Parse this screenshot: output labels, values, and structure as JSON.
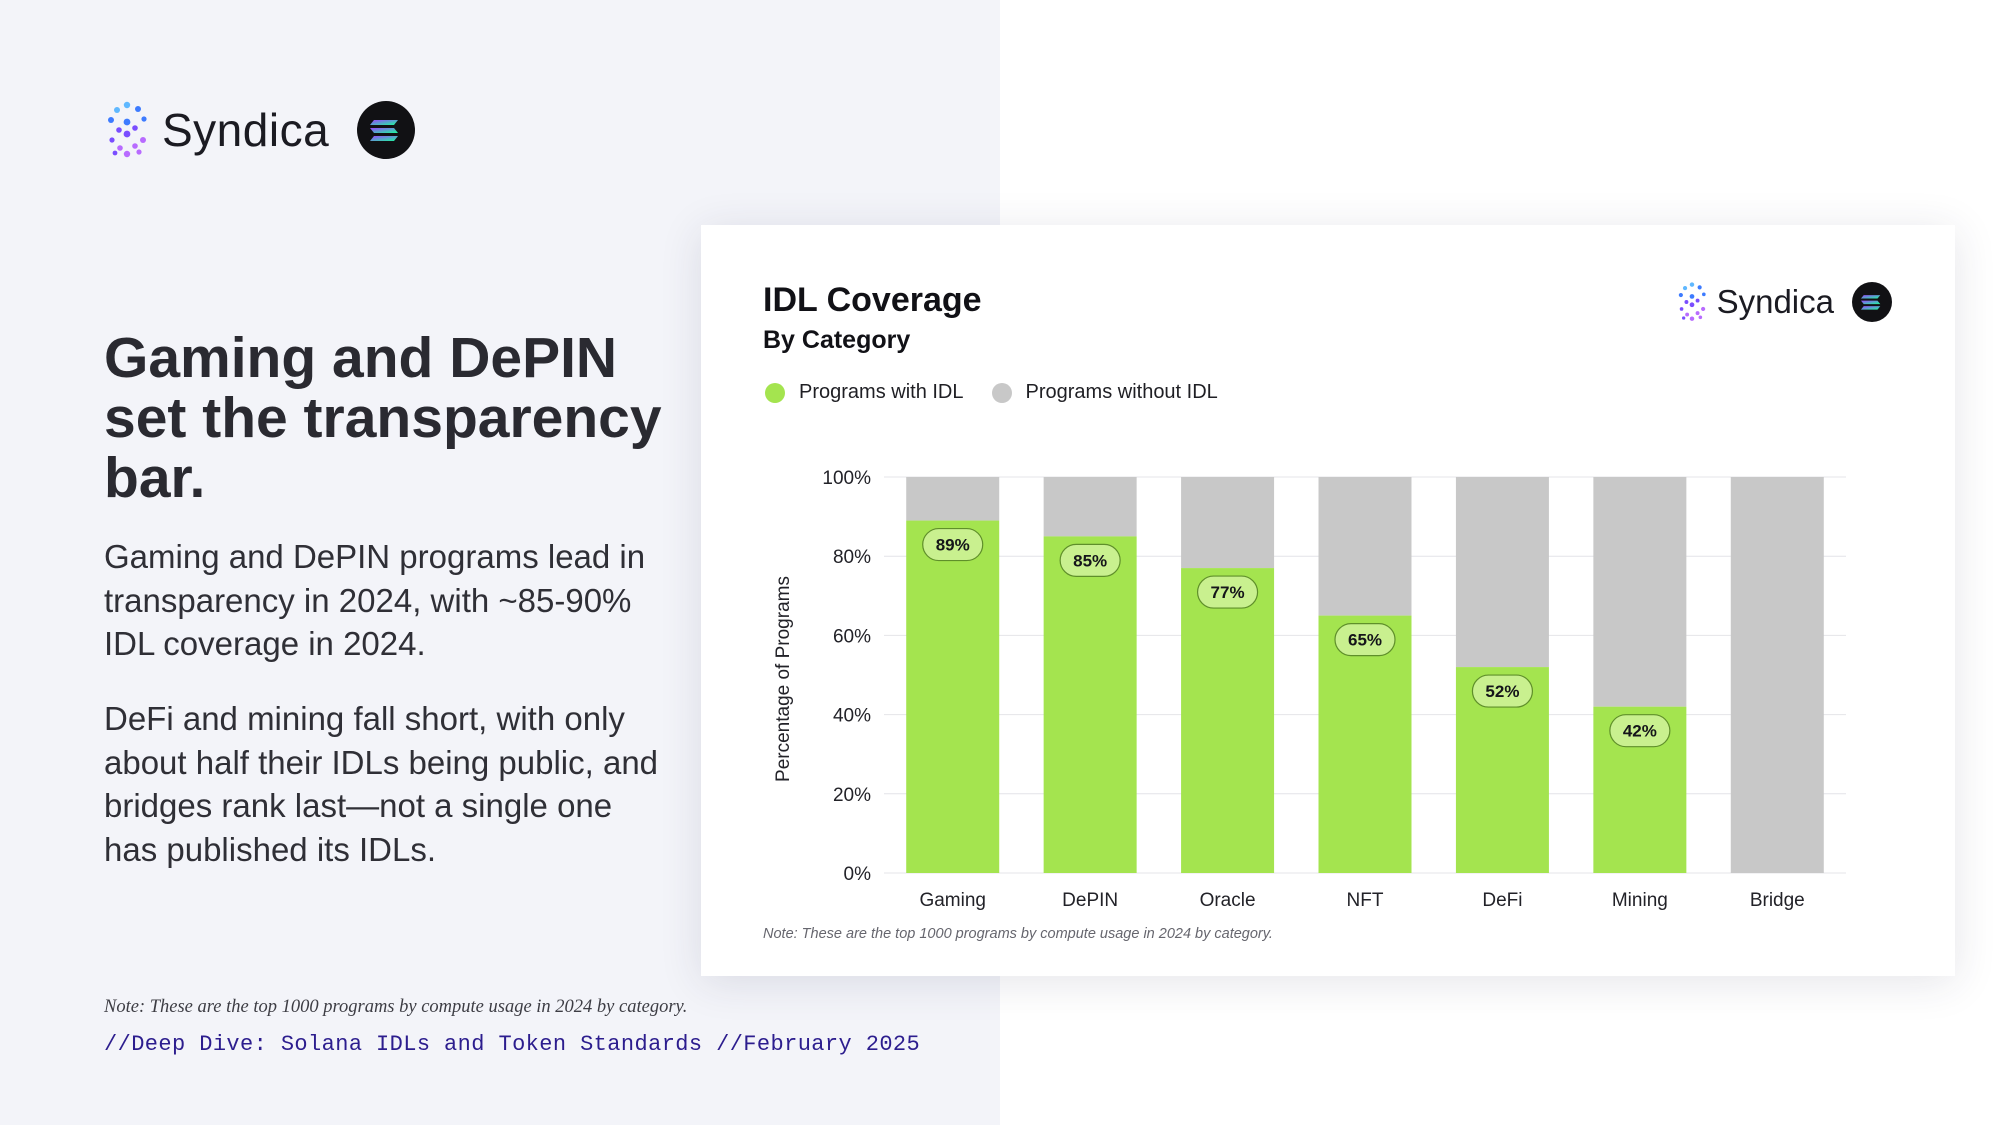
{
  "brand": {
    "name": "Syndica",
    "mark_colors": [
      "#5fb8ff",
      "#3d7bff",
      "#7a4dff",
      "#b86bff"
    ],
    "solana_gradient": [
      "#9945ff",
      "#19fb9b"
    ]
  },
  "left": {
    "headline": "Gaming and DePIN set the transparency bar.",
    "paragraph1": "Gaming and DePIN programs lead in transparency in 2024, with ~85-90% IDL coverage in 2024.",
    "paragraph2": "DeFi and mining fall short, with only about half their IDLs being public, and bridges rank last—not a single one has published its IDLs.",
    "note": "Note: These are the top 1000 programs by compute usage in 2024 by category.",
    "credit": "//Deep Dive: Solana IDLs and Token Standards //February 2025"
  },
  "chart_data": {
    "type": "bar",
    "stacked": true,
    "title": "IDL Coverage",
    "subtitle": "By Category",
    "ylabel": "Percentage of Programs",
    "xlabel": "",
    "ylim": [
      0,
      100
    ],
    "yticks": [
      0,
      20,
      40,
      60,
      80,
      100
    ],
    "ytick_labels": [
      "0%",
      "20%",
      "40%",
      "60%",
      "80%",
      "100%"
    ],
    "categories": [
      "Gaming",
      "DePIN",
      "Oracle",
      "NFT",
      "DeFi",
      "Mining",
      "Bridge"
    ],
    "series": [
      {
        "name": "Programs with IDL",
        "color": "#a4e44f",
        "values": [
          89,
          85,
          77,
          65,
          52,
          42,
          0
        ]
      },
      {
        "name": "Programs without IDL",
        "color": "#c8c8c8",
        "values": [
          11,
          15,
          23,
          35,
          48,
          58,
          100
        ]
      }
    ],
    "data_labels": [
      "89%",
      "85%",
      "77%",
      "65%",
      "52%",
      "42%",
      ""
    ],
    "legend_position": "top-left",
    "grid": true,
    "note": "Note: These are the top 1000 programs by compute usage in 2024 by category."
  }
}
